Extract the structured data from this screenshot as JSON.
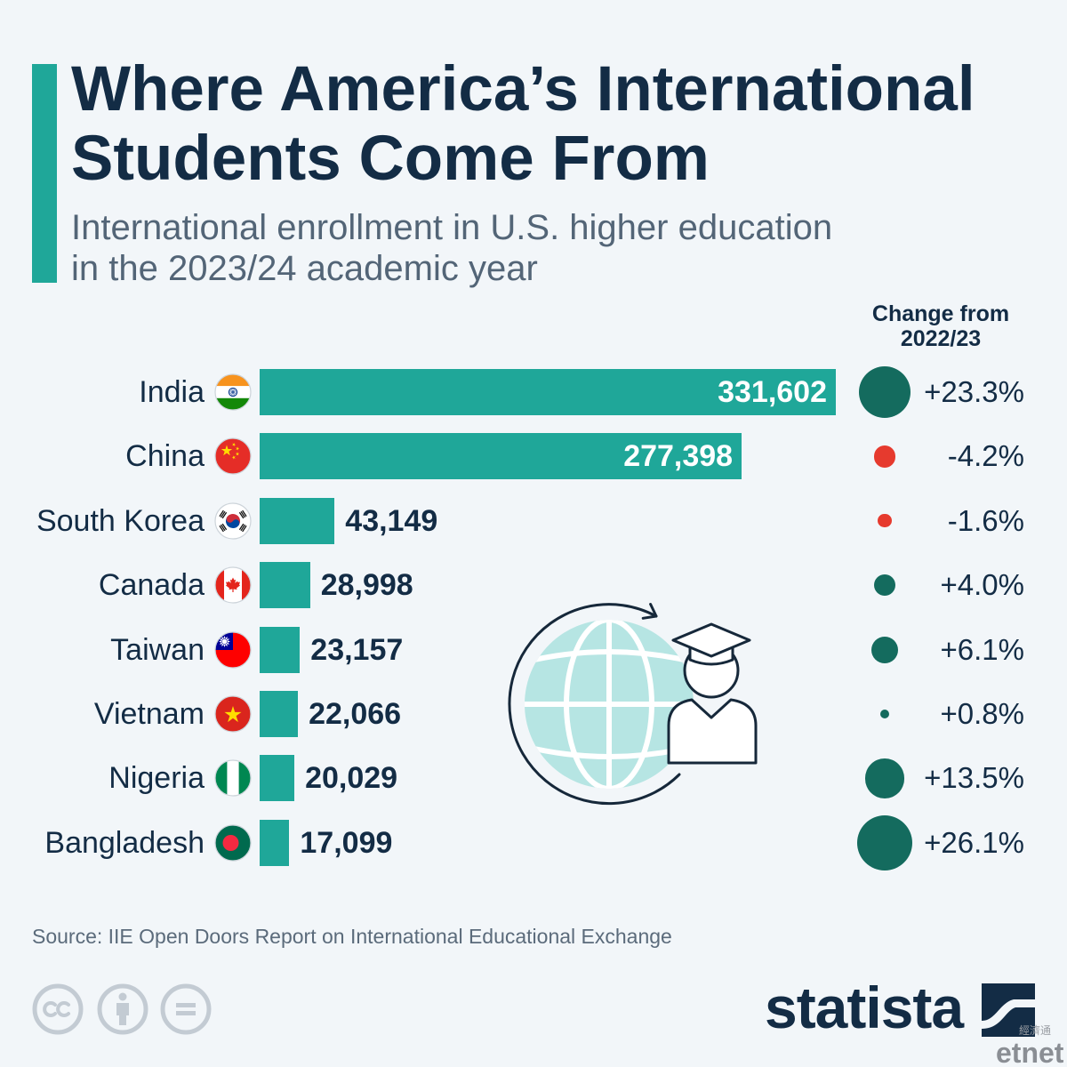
{
  "colors": {
    "background": "#f2f6f9",
    "accent": "#1fa799",
    "bar": "#1fa799",
    "text_dark": "#132c45",
    "subtitle": "#536577",
    "positive": "#146b5e",
    "negative": "#e63a2e",
    "bar_label_inside": "#ffffff",
    "muted_icon": "#c3cbd3"
  },
  "chart_data": {
    "type": "bar",
    "orientation": "horizontal",
    "title": [
      "Where America’s International",
      "Students Come From"
    ],
    "subtitle": [
      "International enrollment in U.S. higher education",
      "in the 2023/24 academic year"
    ],
    "categories": [
      "India",
      "China",
      "South Korea",
      "Canada",
      "Taiwan",
      "Vietnam",
      "Nigeria",
      "Bangladesh"
    ],
    "flag_icons": [
      "india-flag-icon",
      "china-flag-icon",
      "south-korea-flag-icon",
      "canada-flag-icon",
      "taiwan-flag-icon",
      "vietnam-flag-icon",
      "nigeria-flag-icon",
      "bangladesh-flag-icon"
    ],
    "values": [
      331602,
      277398,
      43149,
      28998,
      23157,
      22066,
      20029,
      17099
    ],
    "value_labels": [
      "331,602",
      "277,398",
      "43,149",
      "28,998",
      "23,157",
      "22,066",
      "20,029",
      "17,099"
    ],
    "change_header": [
      "Change from",
      "2022/23"
    ],
    "change_values": [
      23.3,
      -4.2,
      -1.6,
      4.0,
      6.1,
      0.8,
      13.5,
      26.1
    ],
    "change_labels": [
      "+23.3%",
      "-4.2%",
      "-1.6%",
      "+4.0%",
      "+6.1%",
      "+0.8%",
      "+13.5%",
      "+26.1%"
    ],
    "grid": false
  },
  "illustration": {
    "globe_icon": "globe-icon",
    "arrow_icon": "circular-arrow-icon",
    "graduate_icon": "graduate-icon"
  },
  "footer": {
    "source": "Source: IIE Open Doors Report on International Educational Exchange",
    "license_icons": [
      "cc-icon",
      "attribution-icon",
      "no-derivatives-icon"
    ],
    "brand": "statista",
    "brand_icon": "statista-logo-icon",
    "watermark": {
      "cjk": "經濟通",
      "latin": "etnet"
    }
  }
}
